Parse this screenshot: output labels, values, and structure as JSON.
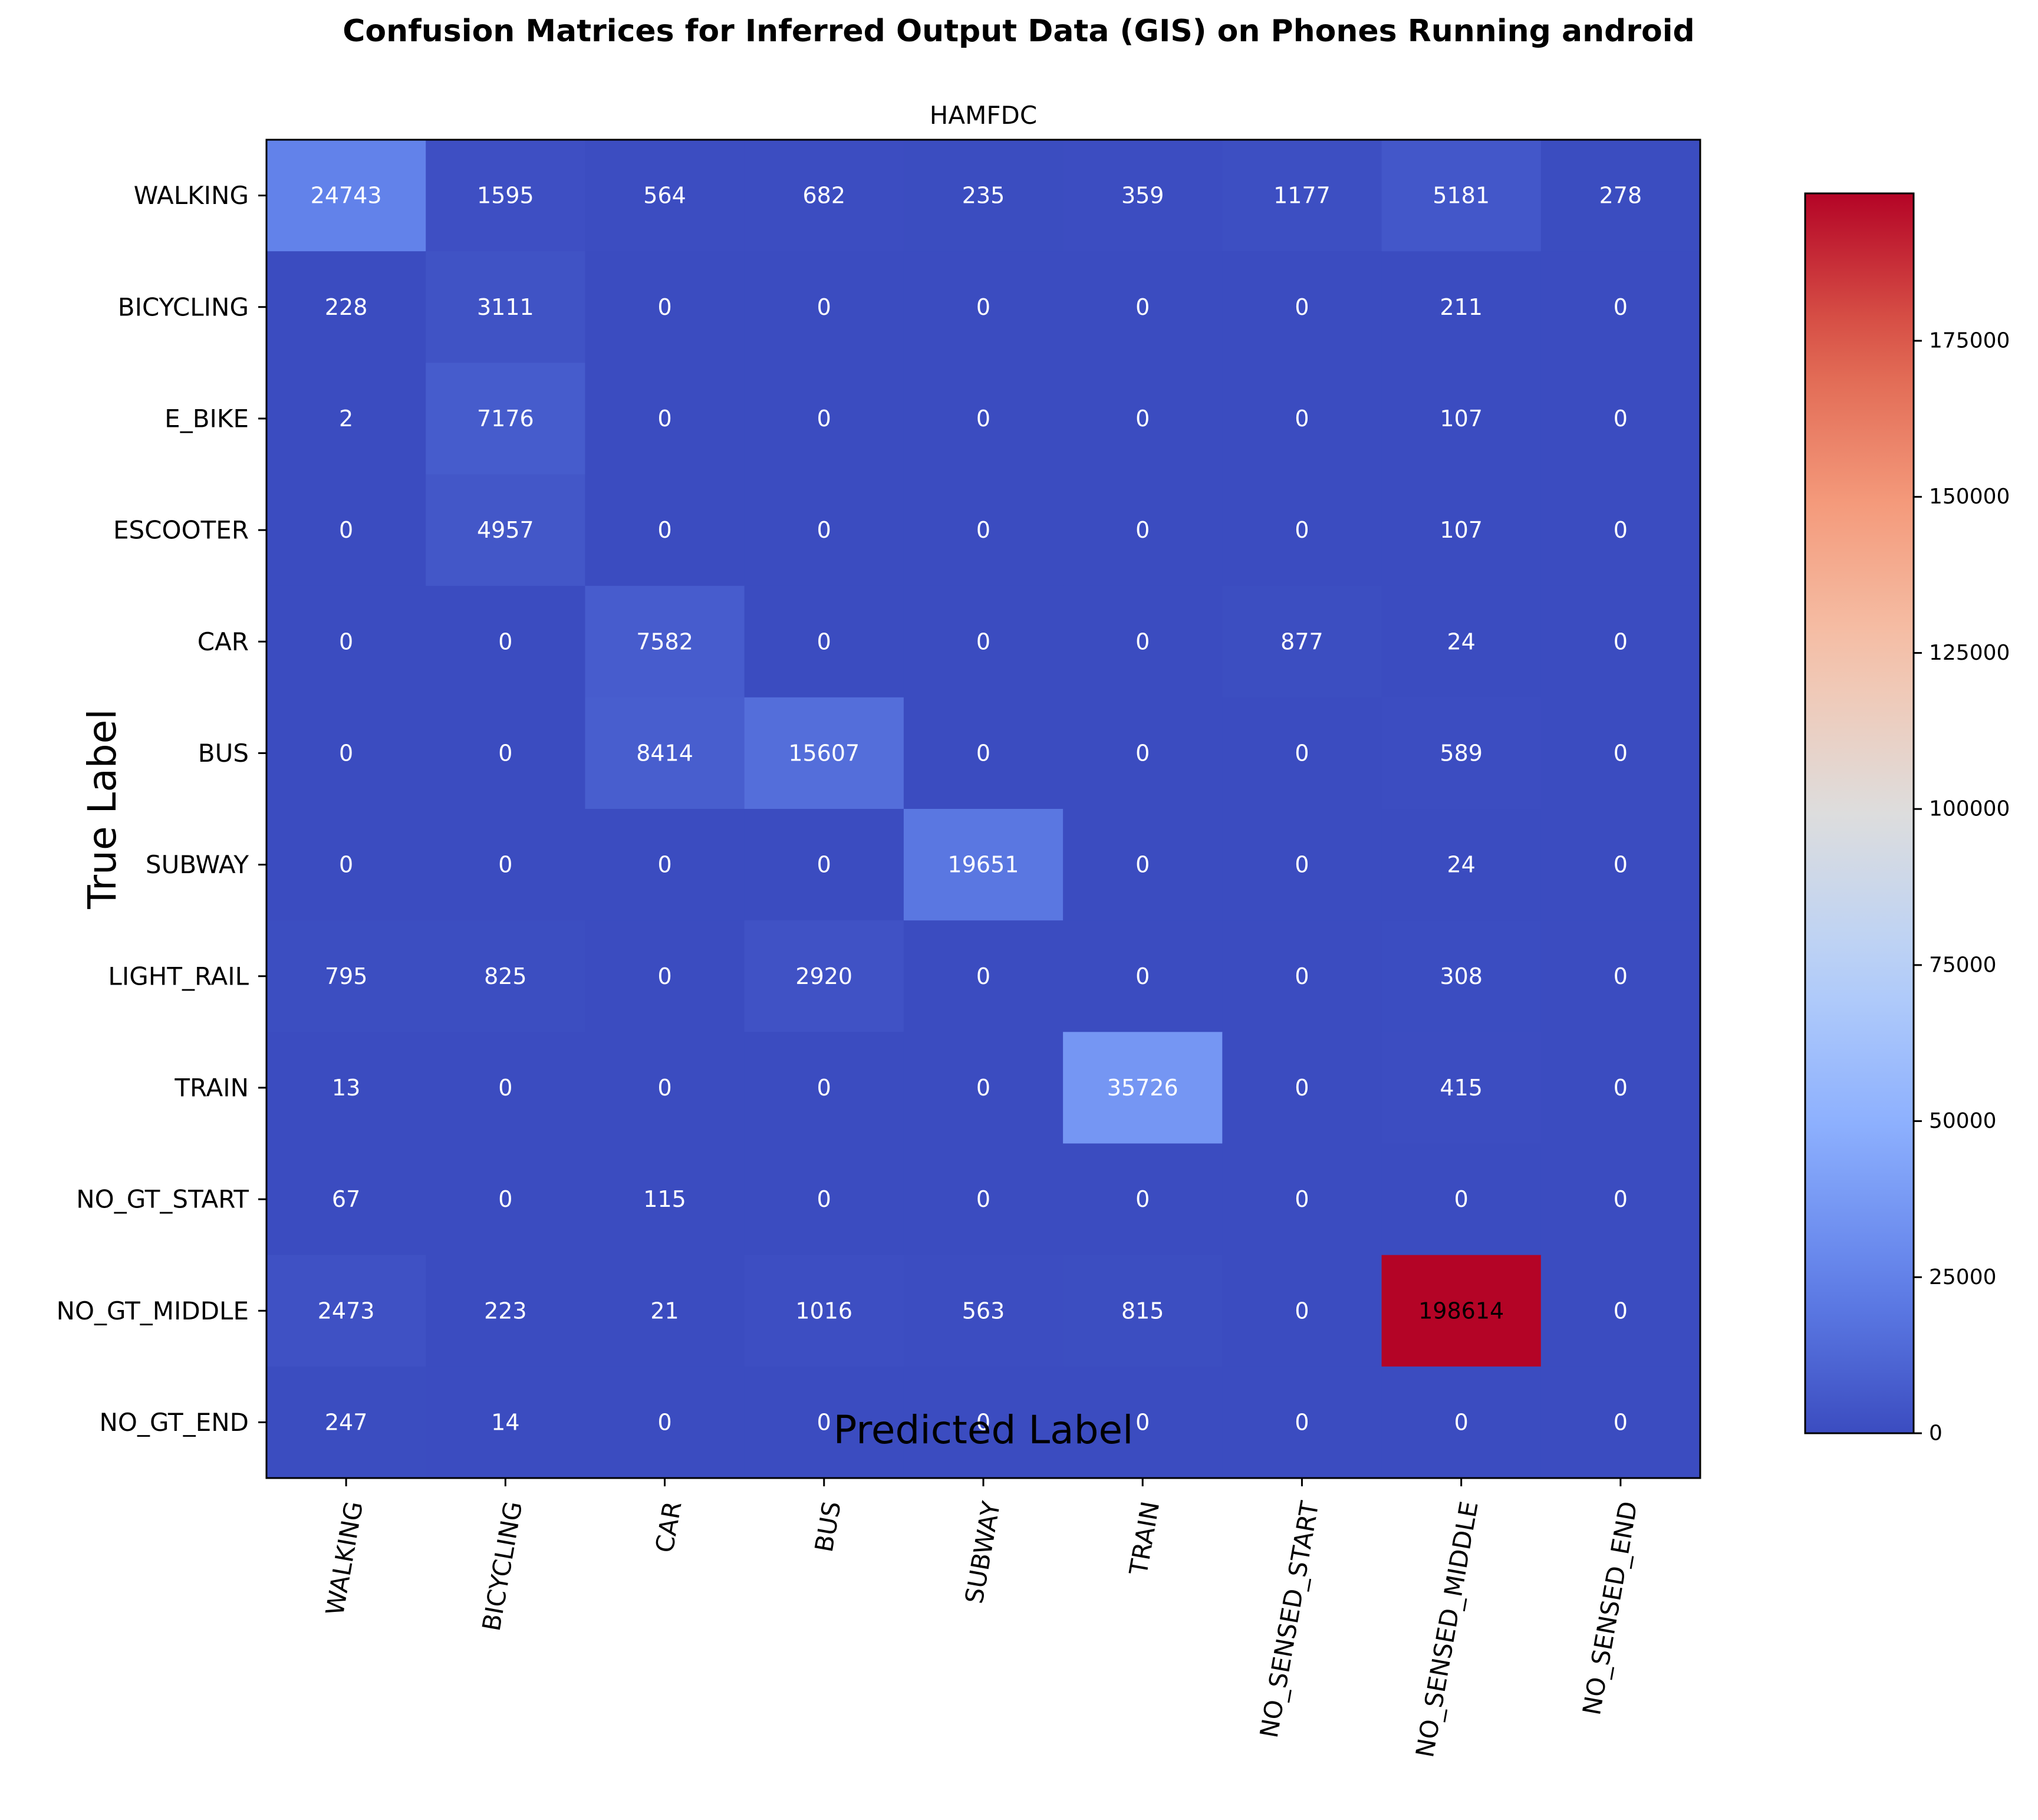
{
  "chart_data": {
    "type": "heatmap",
    "suptitle": "Confusion Matrices for Inferred Output Data (GIS) on Phones Running android",
    "title": "HAMFDC",
    "xlabel": "Predicted Label",
    "ylabel": "True Label",
    "x_categories": [
      "WALKING",
      "BICYCLING",
      "CAR",
      "BUS",
      "SUBWAY",
      "TRAIN",
      "NO_SENSED_START",
      "NO_SENSED_MIDDLE",
      "NO_SENSED_END"
    ],
    "y_categories": [
      "WALKING",
      "BICYCLING",
      "E_BIKE",
      "ESCOOTER",
      "CAR",
      "BUS",
      "SUBWAY",
      "LIGHT_RAIL",
      "TRAIN",
      "NO_GT_START",
      "NO_GT_MIDDLE",
      "NO_GT_END"
    ],
    "matrix": [
      [
        24743,
        1595,
        564,
        682,
        235,
        359,
        1177,
        5181,
        278
      ],
      [
        228,
        3111,
        0,
        0,
        0,
        0,
        0,
        211,
        0
      ],
      [
        2,
        7176,
        0,
        0,
        0,
        0,
        0,
        107,
        0
      ],
      [
        0,
        4957,
        0,
        0,
        0,
        0,
        0,
        107,
        0
      ],
      [
        0,
        0,
        7582,
        0,
        0,
        0,
        877,
        24,
        0
      ],
      [
        0,
        0,
        8414,
        15607,
        0,
        0,
        0,
        589,
        0
      ],
      [
        0,
        0,
        0,
        0,
        19651,
        0,
        0,
        24,
        0
      ],
      [
        795,
        825,
        0,
        2920,
        0,
        0,
        0,
        308,
        0
      ],
      [
        13,
        0,
        0,
        0,
        0,
        35726,
        0,
        415,
        0
      ],
      [
        67,
        0,
        115,
        0,
        0,
        0,
        0,
        0,
        0
      ],
      [
        2473,
        223,
        21,
        1016,
        563,
        815,
        0,
        198614,
        0
      ],
      [
        247,
        14,
        0,
        0,
        0,
        0,
        0,
        0,
        0
      ]
    ],
    "colormap": "coolwarm",
    "value_range": [
      0,
      198614
    ],
    "colorbar_ticks": [
      0,
      25000,
      50000,
      75000,
      100000,
      125000,
      150000,
      175000
    ],
    "colorbar_tick_labels": [
      "0",
      "25000",
      "50000",
      "75000",
      "100000",
      "125000",
      "150000",
      "175000"
    ],
    "grid": false,
    "legend": "colorbar-right"
  }
}
